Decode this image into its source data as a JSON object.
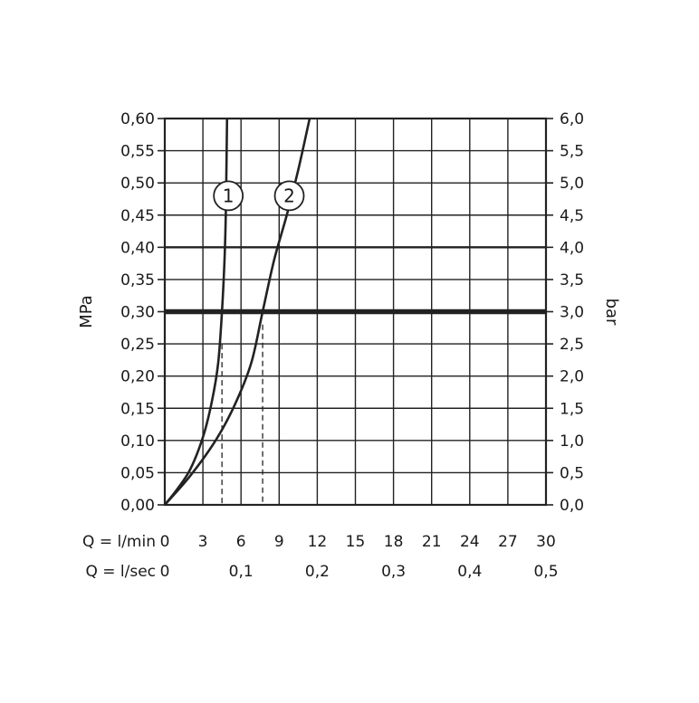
{
  "chart_data": {
    "type": "line",
    "left_axis": {
      "label": "MPa",
      "ticks": [
        "0,00",
        "0,05",
        "0,10",
        "0,15",
        "0,20",
        "0,25",
        "0,30",
        "0,35",
        "0,40",
        "0,45",
        "0,50",
        "0,55",
        "0,60"
      ],
      "range": [
        0,
        0.6
      ]
    },
    "right_axis": {
      "label": "bar",
      "ticks": [
        "0,0",
        "0,5",
        "1,0",
        "1,5",
        "2,0",
        "2,5",
        "3,0",
        "3,5",
        "4,0",
        "4,5",
        "5,0",
        "5,5",
        "6,0"
      ],
      "range": [
        0,
        6
      ]
    },
    "x_axis": {
      "range": [
        0,
        30
      ],
      "lmin_label": "Q = l/min",
      "lmin_ticks": [
        {
          "value": 0,
          "label": "0"
        },
        {
          "value": 3,
          "label": "3"
        },
        {
          "value": 6,
          "label": "6"
        },
        {
          "value": 9,
          "label": "9"
        },
        {
          "value": 12,
          "label": "12"
        },
        {
          "value": 15,
          "label": "15"
        },
        {
          "value": 18,
          "label": "18"
        },
        {
          "value": 21,
          "label": "21"
        },
        {
          "value": 24,
          "label": "24"
        },
        {
          "value": 27,
          "label": "27"
        },
        {
          "value": 30,
          "label": "30"
        }
      ],
      "lsec_label": "Q = l/sec",
      "lsec_ticks": [
        {
          "value": 0,
          "label": "0"
        },
        {
          "value": 6,
          "label": "0,1"
        },
        {
          "value": 12,
          "label": "0,2"
        },
        {
          "value": 18,
          "label": "0,3"
        },
        {
          "value": 24,
          "label": "0,4"
        },
        {
          "value": 30,
          "label": "0,5"
        }
      ]
    },
    "grid": true,
    "thick_lines_at_mpa": [
      0.3
    ],
    "medium_lines_at_mpa": [
      0.4
    ],
    "series": [
      {
        "label": "1",
        "label_at": {
          "x": 5.0,
          "y": 0.48
        },
        "points": [
          [
            0,
            0
          ],
          [
            1,
            0.025
          ],
          [
            2,
            0.055
          ],
          [
            3,
            0.105
          ],
          [
            3.7,
            0.16
          ],
          [
            4.2,
            0.22
          ],
          [
            4.5,
            0.3
          ],
          [
            4.7,
            0.38
          ],
          [
            4.8,
            0.45
          ],
          [
            4.85,
            0.52
          ],
          [
            4.9,
            0.6
          ]
        ]
      },
      {
        "label": "2",
        "label_at": {
          "x": 9.8,
          "y": 0.48
        },
        "points": [
          [
            0,
            0
          ],
          [
            2,
            0.045
          ],
          [
            4,
            0.1
          ],
          [
            5.5,
            0.155
          ],
          [
            6.8,
            0.22
          ],
          [
            7.7,
            0.3
          ],
          [
            8.6,
            0.38
          ],
          [
            9.6,
            0.45
          ],
          [
            10.5,
            0.52
          ],
          [
            11.4,
            0.6
          ]
        ]
      }
    ],
    "reference_flows": [
      {
        "x": 4.5,
        "y": 0.25
      },
      {
        "x": 7.7,
        "y": 0.28
      }
    ]
  }
}
